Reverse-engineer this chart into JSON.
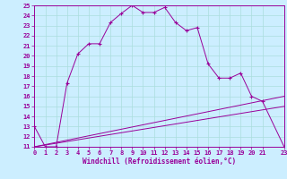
{
  "xlabel": "Windchill (Refroidissement éolien,°C)",
  "xlim": [
    0,
    23
  ],
  "ylim": [
    11,
    25
  ],
  "xticks": [
    0,
    1,
    2,
    3,
    4,
    5,
    6,
    7,
    8,
    9,
    10,
    11,
    12,
    13,
    14,
    15,
    16,
    17,
    18,
    19,
    20,
    21,
    23
  ],
  "yticks": [
    11,
    12,
    13,
    14,
    15,
    16,
    17,
    18,
    19,
    20,
    21,
    22,
    23,
    24,
    25
  ],
  "bg_color": "#cceeff",
  "line_color": "#990099",
  "grid_color": "#aadddd",
  "series": [
    [
      0,
      13
    ],
    [
      1,
      11
    ],
    [
      2,
      11
    ],
    [
      3,
      17.3
    ],
    [
      4,
      20.2
    ],
    [
      5,
      21.2
    ],
    [
      6,
      21.2
    ],
    [
      7,
      23.3
    ],
    [
      8,
      24.2
    ],
    [
      9,
      25.0
    ],
    [
      10,
      24.3
    ],
    [
      11,
      24.3
    ],
    [
      12,
      24.8
    ],
    [
      13,
      23.3
    ],
    [
      14,
      22.5
    ],
    [
      15,
      22.8
    ],
    [
      16,
      19.2
    ],
    [
      17,
      17.8
    ],
    [
      18,
      17.8
    ],
    [
      19,
      18.3
    ],
    [
      20,
      16.0
    ],
    [
      21,
      15.5
    ],
    [
      23,
      11.0
    ]
  ],
  "line_flat": [
    [
      0,
      11.0
    ],
    [
      23,
      11.0
    ]
  ],
  "line_rise1": [
    [
      0,
      11.0
    ],
    [
      23,
      15.0
    ]
  ],
  "line_rise2": [
    [
      0,
      11.0
    ],
    [
      23,
      16.0
    ]
  ]
}
